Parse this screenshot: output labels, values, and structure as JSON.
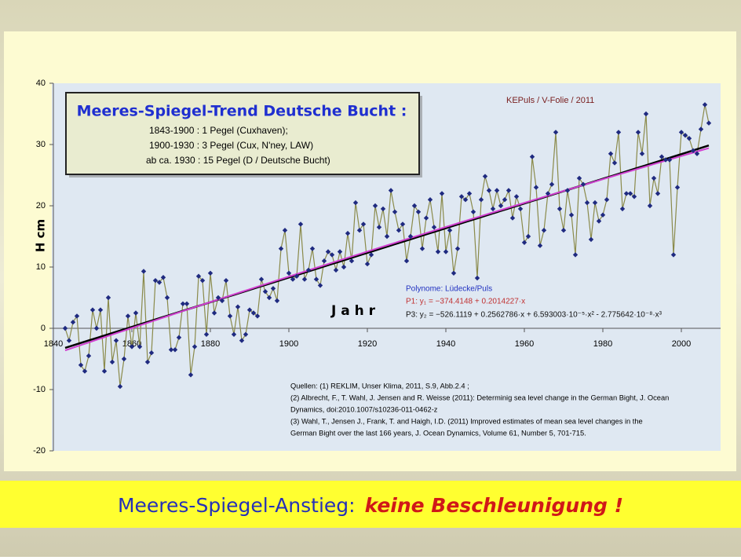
{
  "chart_data": {
    "type": "line",
    "title": "Meeres-Spiegel-Trend Deutsche Bucht :",
    "subtitle_lines": [
      "1843-1900 :   1 Pegel (Cuxhaven);",
      "1900-1930 :   3 Pegel (Cux, N'ney, LAW)",
      "ab ca. 1930 : 15 Pegel (D / Deutsche Bucht)"
    ],
    "credit": "KEPuls / V-Folie / 2011",
    "y_label": "H cm",
    "x_label": "J a h r",
    "polynome_title": "Polynome: Lüdecke/Puls",
    "trendlines": [
      {
        "label": "P1:  y₁ = −374.4148 + 0.2014227·x",
        "color": "#000000",
        "coefficients": [
          -374.4148,
          0.2014227
        ]
      },
      {
        "label": "P3:  y₂ = −526.1119 + 0.2562786·x + 6.593003·10⁻⁵·x² - 2.775642·10⁻⁸·x³",
        "color": "#d040d0",
        "coefficients": [
          -526.1119,
          0.2562786,
          6.593003e-05,
          -2.775642e-08
        ]
      }
    ],
    "sources": [
      "Quellen: (1) REKLIM, Unser Klima, 2011, S.9, Abb.2.4 ;",
      "(2)  Albrecht, F., T. Wahl, J. Jensen and R. Weisse (2011): Determinig sea level change in the German Bight, J. Ocean",
      "Dynamics, doi:2010.1007/s10236-011-0462-z",
      "(3) Wahl, T., Jensen J., Frank, T. and Haigh, I.D. (2011) Improved estimates of mean sea level changes in the",
      "German Bight over the last 166 years, J. Ocean Dynamics, Volume 61, Number 5, 701-715."
    ],
    "banner": "Meeres-Spiegel-Anstieg:",
    "banner_emphasis": "keine Beschleunigung !",
    "x": [
      1843,
      1844,
      1845,
      1846,
      1847,
      1848,
      1849,
      1850,
      1851,
      1852,
      1853,
      1854,
      1855,
      1856,
      1857,
      1858,
      1859,
      1860,
      1861,
      1862,
      1863,
      1864,
      1865,
      1866,
      1867,
      1868,
      1869,
      1870,
      1871,
      1872,
      1873,
      1874,
      1875,
      1876,
      1877,
      1878,
      1879,
      1880,
      1881,
      1882,
      1883,
      1884,
      1885,
      1886,
      1887,
      1888,
      1889,
      1890,
      1891,
      1892,
      1893,
      1894,
      1895,
      1896,
      1897,
      1898,
      1899,
      1900,
      1901,
      1902,
      1903,
      1904,
      1905,
      1906,
      1907,
      1908,
      1909,
      1910,
      1911,
      1912,
      1913,
      1914,
      1915,
      1916,
      1917,
      1918,
      1919,
      1920,
      1921,
      1922,
      1923,
      1924,
      1925,
      1926,
      1927,
      1928,
      1929,
      1930,
      1931,
      1932,
      1933,
      1934,
      1935,
      1936,
      1937,
      1938,
      1939,
      1940,
      1941,
      1942,
      1943,
      1944,
      1945,
      1946,
      1947,
      1948,
      1949,
      1950,
      1951,
      1952,
      1953,
      1954,
      1955,
      1956,
      1957,
      1958,
      1959,
      1960,
      1961,
      1962,
      1963,
      1964,
      1965,
      1966,
      1967,
      1968,
      1969,
      1970,
      1971,
      1972,
      1973,
      1974,
      1975,
      1976,
      1977,
      1978,
      1979,
      1980,
      1981,
      1982,
      1983,
      1984,
      1985,
      1986,
      1987,
      1988,
      1989,
      1990,
      1991,
      1992,
      1993,
      1994,
      1995,
      1996,
      1997,
      1998,
      1999,
      2000,
      2001,
      2002,
      2003,
      2004,
      2005,
      2006,
      2007
    ],
    "series": [
      {
        "color": "#1f2a80",
        "line_color": "#8a8a4a",
        "values": [
          0,
          -2,
          1,
          2,
          -6,
          -7,
          -4.5,
          3,
          0,
          3,
          -7,
          5,
          -5.5,
          -2,
          -9.5,
          -5,
          2,
          -3,
          2.5,
          -3,
          9.3,
          -5.5,
          -4,
          7.8,
          7.5,
          8.3,
          5,
          -3.5,
          -3.5,
          -1.5,
          4,
          4,
          -7.6,
          -3,
          8.5,
          7.8,
          -1,
          9,
          2.5,
          5,
          4.5,
          7.8,
          2,
          -1,
          3.5,
          -2,
          -1,
          3,
          2.5,
          2,
          8,
          6,
          5,
          6.5,
          4.5,
          13,
          16,
          9,
          8,
          8.5,
          17,
          8,
          9.5,
          13,
          8,
          7,
          11,
          12.5,
          12,
          9.5,
          12.5,
          10,
          15.5,
          11,
          20.5,
          16,
          17,
          10.5,
          12,
          20,
          16.5,
          19.5,
          15,
          22.5,
          19,
          16,
          17,
          11,
          15,
          20,
          19,
          13,
          18,
          21,
          16.5,
          12.5,
          22,
          12.5,
          16,
          9,
          13,
          21.5,
          21,
          22,
          19,
          8.2,
          21,
          24.8,
          22.5,
          19.5,
          22.5,
          20,
          21,
          22.5,
          18,
          21.5,
          19.5,
          14,
          15,
          28,
          23,
          13.5,
          16,
          22,
          23.5,
          32,
          19.5,
          16,
          22.5,
          18.5,
          12,
          24.5,
          23.5,
          20.5,
          14.5,
          20.5,
          17.5,
          18.5,
          21,
          28.5,
          27,
          32,
          19.5,
          22,
          22,
          21.5,
          32,
          28.5,
          35,
          20,
          24.5,
          22,
          28,
          27.5,
          27.5,
          12,
          23,
          32,
          31.5,
          31,
          29,
          28.5,
          32.5,
          36.5,
          33.5
        ]
      }
    ],
    "xlim": [
      1840,
      2010
    ],
    "ylim": [
      -20,
      40
    ],
    "xticks": [
      1840,
      1860,
      1880,
      1900,
      1920,
      1940,
      1960,
      1980,
      2000
    ],
    "yticks": [
      -20,
      -10,
      0,
      10,
      20,
      30,
      40
    ]
  }
}
